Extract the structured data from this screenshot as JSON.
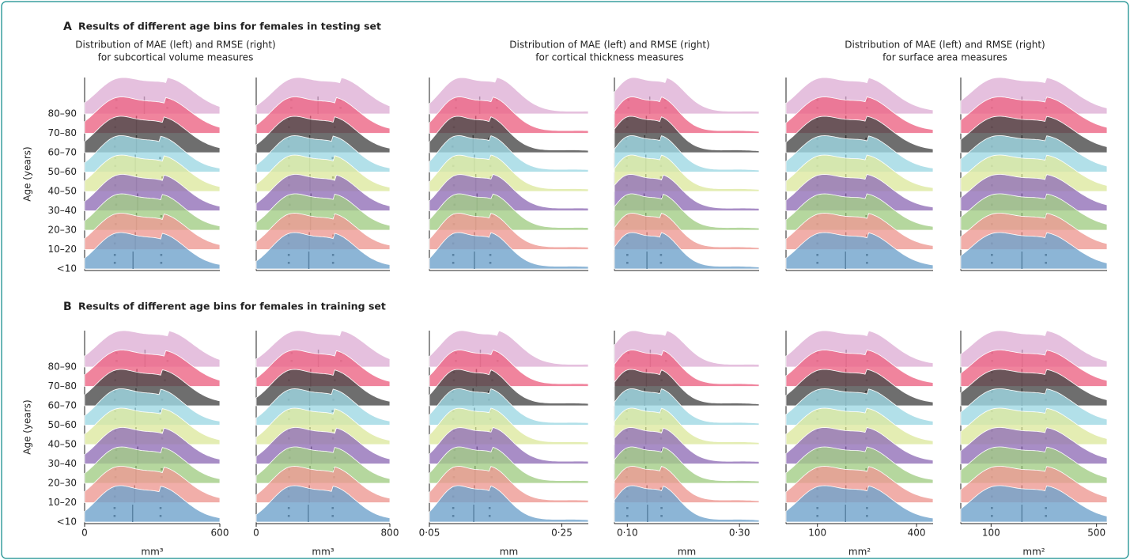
{
  "palette": [
    "#6fa3cc",
    "#ee9a93",
    "#a3cd86",
    "#9271b8",
    "#dde8a0",
    "#9fd8e4",
    "#4a4a4a",
    "#ec6584",
    "#dfb0d6"
  ],
  "sections": [
    {
      "label": "A",
      "title": "Results of different age bins for females in testing set",
      "subtitles": [
        [
          "Distribution of MAE (left) and RMSE (right)",
          "for subcortical volume measures"
        ],
        [
          "Distribution of MAE (left) and RMSE (right)",
          "for cortical thickness measures"
        ],
        [
          "Distribution of MAE (left) and RMSE (right)",
          "for surface area measures"
        ]
      ]
    },
    {
      "label": "B",
      "title": "Results of different age bins for females in training set"
    }
  ],
  "chart_data": [
    {
      "type": "ridgeline",
      "ylabel": "Age (years)",
      "categories": [
        "<10",
        "10–20",
        "20–30",
        "30–40",
        "40–50",
        "50–60",
        "60–70",
        "70–80",
        "80–90"
      ],
      "xlim": [
        0,
        600
      ],
      "median": [
        215,
        225,
        230,
        235,
        230,
        225,
        230,
        230,
        265
      ],
      "q1": [
        134,
        134,
        138,
        140,
        136,
        136,
        134,
        136,
        141
      ],
      "q3": [
        340,
        345,
        340,
        345,
        345,
        335,
        345,
        355,
        367
      ]
    },
    {
      "type": "ridgeline",
      "xlim": [
        0,
        800
      ],
      "median": [
        315,
        318,
        325,
        328,
        322,
        320,
        320,
        325,
        370
      ],
      "q1": [
        195,
        194,
        198,
        200,
        196,
        196,
        194,
        196,
        210
      ],
      "q3": [
        460,
        462,
        468,
        470,
        460,
        458,
        462,
        470,
        505
      ]
    },
    {
      "type": "ridgeline",
      "xlim": [
        0.05,
        0.29
      ],
      "median": [
        0.118,
        0.118,
        0.12,
        0.122,
        0.12,
        0.118,
        0.116,
        0.12,
        0.126
      ],
      "q1": [
        0.086,
        0.086,
        0.087,
        0.088,
        0.087,
        0.086,
        0.085,
        0.087,
        0.09
      ],
      "q3": [
        0.142,
        0.142,
        0.145,
        0.146,
        0.143,
        0.142,
        0.14,
        0.145,
        0.152
      ]
    },
    {
      "type": "ridgeline",
      "xlim": [
        0.077,
        0.335
      ],
      "median": [
        0.135,
        0.135,
        0.133,
        0.13,
        0.133,
        0.133,
        0.131,
        0.134,
        0.14
      ],
      "q1": [
        0.1,
        0.1,
        0.099,
        0.097,
        0.099,
        0.099,
        0.098,
        0.1,
        0.102
      ],
      "q3": [
        0.16,
        0.16,
        0.162,
        0.162,
        0.16,
        0.16,
        0.158,
        0.16,
        0.168
      ]
    },
    {
      "type": "ridgeline",
      "xlim": [
        5,
        450
      ],
      "median": [
        185,
        186,
        186,
        186,
        186,
        186,
        186,
        186,
        186
      ],
      "q1": [
        100,
        100,
        100,
        100,
        100,
        100,
        100,
        100,
        100
      ],
      "q3": [
        250,
        250,
        248,
        248,
        248,
        250,
        248,
        248,
        250
      ]
    },
    {
      "type": "ridgeline",
      "xlim": [
        -15,
        540
      ],
      "median": [
        217,
        217,
        217,
        217,
        217,
        217,
        217,
        217,
        217
      ],
      "q1": [
        103,
        103,
        103,
        103,
        103,
        103,
        103,
        103,
        103
      ],
      "q3": [
        308,
        308,
        308,
        308,
        308,
        308,
        308,
        308,
        308
      ]
    },
    {
      "type": "ridgeline",
      "ylabel": "Age (years)",
      "categories": [
        "<10",
        "10–20",
        "20–30",
        "30–40",
        "40–50",
        "50–60",
        "60–70",
        "70–80",
        "80–90"
      ],
      "xlim": [
        0,
        600
      ],
      "xticks": [
        0,
        600
      ],
      "xlabel": "mm³",
      "median": [
        213,
        222,
        228,
        236,
        228,
        225,
        228,
        232,
        268
      ],
      "q1": [
        133,
        134,
        137,
        140,
        136,
        136,
        134,
        136,
        142
      ],
      "q3": [
        337,
        345,
        342,
        346,
        344,
        336,
        344,
        356,
        368
      ]
    },
    {
      "type": "ridgeline",
      "xlim": [
        0,
        800
      ],
      "xticks": [
        0,
        800
      ],
      "xlabel": "mm³",
      "median": [
        312,
        318,
        322,
        330,
        322,
        320,
        320,
        326,
        372
      ],
      "q1": [
        195,
        194,
        197,
        200,
        196,
        196,
        194,
        196,
        212
      ],
      "q3": [
        458,
        462,
        466,
        472,
        460,
        458,
        462,
        470,
        508
      ]
    },
    {
      "type": "ridgeline",
      "xlim": [
        0.05,
        0.29
      ],
      "xticks": [
        {
          "value": 0.05,
          "label": "0·05"
        },
        {
          "value": 0.25,
          "label": "0·25"
        }
      ],
      "xlabel": "mm",
      "median": [
        0.117,
        0.118,
        0.119,
        0.122,
        0.12,
        0.118,
        0.116,
        0.121,
        0.127
      ],
      "q1": [
        0.086,
        0.086,
        0.087,
        0.088,
        0.087,
        0.086,
        0.085,
        0.087,
        0.09
      ],
      "q3": [
        0.141,
        0.142,
        0.144,
        0.146,
        0.143,
        0.142,
        0.14,
        0.145,
        0.153
      ]
    },
    {
      "type": "ridgeline",
      "xlim": [
        0.077,
        0.335
      ],
      "xticks": [
        {
          "value": 0.1,
          "label": "0·10"
        },
        {
          "value": 0.3,
          "label": "0·30"
        }
      ],
      "xlabel": "mm",
      "median": [
        0.136,
        0.135,
        0.133,
        0.13,
        0.133,
        0.133,
        0.131,
        0.134,
        0.141
      ],
      "q1": [
        0.1,
        0.1,
        0.099,
        0.097,
        0.099,
        0.099,
        0.098,
        0.1,
        0.102
      ],
      "q3": [
        0.161,
        0.16,
        0.162,
        0.162,
        0.16,
        0.16,
        0.158,
        0.161,
        0.169
      ]
    },
    {
      "type": "ridgeline",
      "xlim": [
        5,
        450
      ],
      "xticks": [
        100,
        400
      ],
      "xlabel": "mm²",
      "median": [
        185,
        186,
        186,
        186,
        186,
        186,
        186,
        186,
        187
      ],
      "q1": [
        100,
        100,
        100,
        100,
        100,
        100,
        100,
        100,
        100
      ],
      "q3": [
        250,
        250,
        248,
        248,
        248,
        250,
        248,
        249,
        251
      ]
    },
    {
      "type": "ridgeline",
      "xlim": [
        -15,
        540
      ],
      "xticks": [
        100,
        500
      ],
      "xlabel": "mm²",
      "median": [
        217,
        217,
        217,
        217,
        217,
        217,
        217,
        217,
        218
      ],
      "q1": [
        103,
        103,
        103,
        103,
        103,
        103,
        103,
        103,
        104
      ],
      "q3": [
        308,
        308,
        308,
        308,
        308,
        308,
        308,
        308,
        309
      ]
    }
  ]
}
